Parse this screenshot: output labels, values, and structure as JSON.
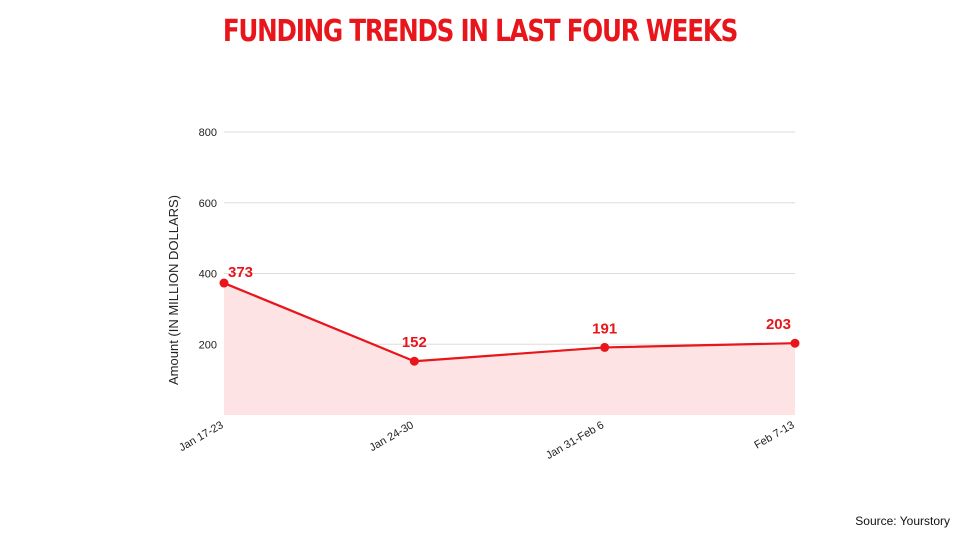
{
  "title": "FUNDING TRENDS IN LAST FOUR WEEKS",
  "source": "Source: Yourstory",
  "colors": {
    "title": "#e8151b",
    "line": "#e8151b",
    "fill": "#fde3e4",
    "grid": "#dddddd"
  },
  "chart_data": {
    "type": "area",
    "title": "FUNDING TRENDS IN LAST FOUR WEEKS",
    "xlabel": "",
    "ylabel": "Amount (IN MILLION DOLLARS)",
    "categories": [
      "Jan 17-23",
      "Jan 24-30",
      "Jan 31-Feb 6",
      "Feb 7-13"
    ],
    "series": [
      {
        "values": [
          373,
          152,
          191,
          203
        ]
      }
    ],
    "data_labels": [
      "373",
      "152",
      "191",
      "203"
    ],
    "ylim": [
      0,
      800
    ],
    "yticks": [
      200,
      400,
      600,
      800
    ],
    "grid": true,
    "legend": "none"
  }
}
